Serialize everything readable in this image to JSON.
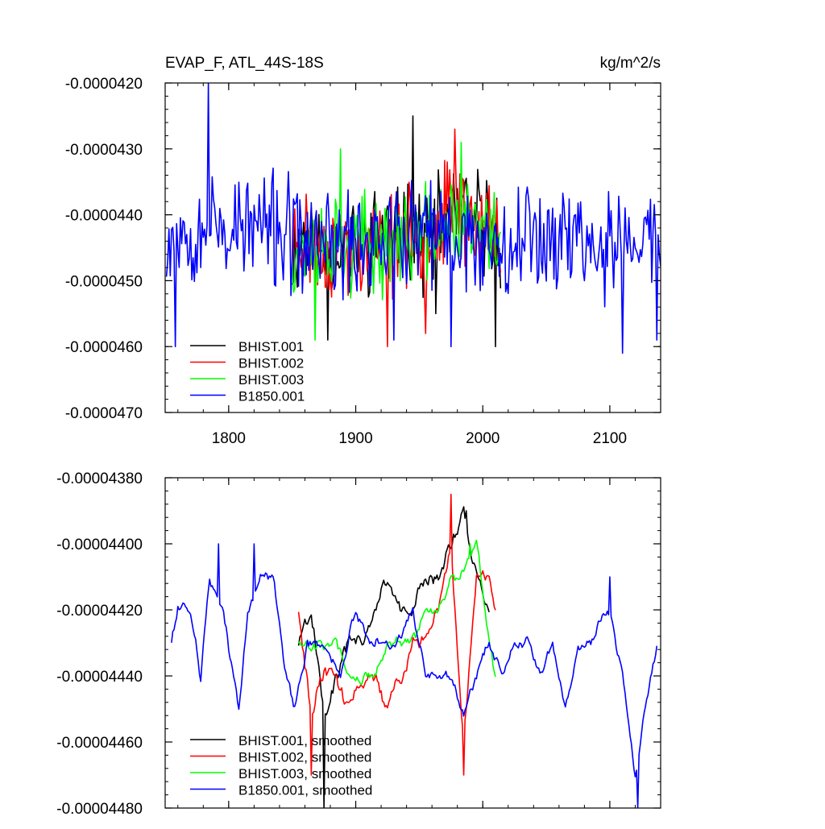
{
  "chart_data": [
    {
      "type": "line",
      "title": "EVAP_F, ATL_44S-18S",
      "units": "kg/m^2/s",
      "xlim": [
        1750,
        2140
      ],
      "ylim": [
        -4.7e-05,
        -4.2e-05
      ],
      "xticks": [
        1800,
        1900,
        2000,
        2100
      ],
      "xtick_labels": [
        "1800",
        "1900",
        "2000",
        "2100"
      ],
      "yticks": [
        -4.2e-05,
        -4.3e-05,
        -4.4e-05,
        -4.5e-05,
        -4.6e-05,
        -4.7e-05
      ],
      "ytick_labels": [
        "-0.0000420",
        "-0.0000430",
        "-0.0000440",
        "-0.0000450",
        "-0.0000460",
        "-0.0000470"
      ],
      "legend_position": "bottom-left",
      "series": [
        {
          "name": "BHIST.001",
          "color": "#000000",
          "x_start": 1850,
          "x_end": 2014,
          "anchors": [
            [
              1850,
              -4.46e-05
            ],
            [
              1860,
              -4.42e-05
            ],
            [
              1870,
              -4.46e-05
            ],
            [
              1880,
              -4.45e-05
            ],
            [
              1890,
              -4.44e-05
            ],
            [
              1900,
              -4.45e-05
            ],
            [
              1910,
              -4.44e-05
            ],
            [
              1920,
              -4.42e-05
            ],
            [
              1930,
              -4.45e-05
            ],
            [
              1940,
              -4.41e-05
            ],
            [
              1950,
              -4.44e-05
            ],
            [
              1960,
              -4.43e-05
            ],
            [
              1970,
              -4.41e-05
            ],
            [
              1980,
              -4.4e-05
            ],
            [
              1990,
              -4.41e-05
            ],
            [
              2000,
              -4.41e-05
            ],
            [
              2014,
              -4.43e-05
            ]
          ],
          "amplitude": 5.8e-07,
          "seed": 11,
          "peaks": [
            [
              1945,
              -4.25e-05
            ],
            [
              2010,
              -4.6e-05
            ],
            [
              1878,
              -4.59e-05
            ],
            [
              1963,
              -4.55e-05
            ]
          ]
        },
        {
          "name": "BHIST.002",
          "color": "#ff0000",
          "x_start": 1850,
          "x_end": 2014,
          "anchors": [
            [
              1850,
              -4.44e-05
            ],
            [
              1860,
              -4.43e-05
            ],
            [
              1870,
              -4.46e-05
            ],
            [
              1880,
              -4.45e-05
            ],
            [
              1890,
              -4.45e-05
            ],
            [
              1900,
              -4.46e-05
            ],
            [
              1910,
              -4.45e-05
            ],
            [
              1920,
              -4.46e-05
            ],
            [
              1930,
              -4.44e-05
            ],
            [
              1940,
              -4.44e-05
            ],
            [
              1950,
              -4.43e-05
            ],
            [
              1960,
              -4.43e-05
            ],
            [
              1970,
              -4.4e-05
            ],
            [
              1980,
              -4.39e-05
            ],
            [
              1990,
              -4.41e-05
            ],
            [
              2000,
              -4.42e-05
            ],
            [
              2014,
              -4.44e-05
            ]
          ],
          "amplitude": 5.8e-07,
          "seed": 23,
          "peaks": [
            [
              1978,
              -4.27e-05
            ],
            [
              1925,
              -4.6e-05
            ],
            [
              1955,
              -4.58e-05
            ]
          ]
        },
        {
          "name": "BHIST.003",
          "color": "#00ff00",
          "x_start": 1850,
          "x_end": 2014,
          "anchors": [
            [
              1850,
              -4.45e-05
            ],
            [
              1860,
              -4.44e-05
            ],
            [
              1870,
              -4.45e-05
            ],
            [
              1880,
              -4.44e-05
            ],
            [
              1890,
              -4.45e-05
            ],
            [
              1900,
              -4.45e-05
            ],
            [
              1910,
              -4.44e-05
            ],
            [
              1920,
              -4.45e-05
            ],
            [
              1930,
              -4.43e-05
            ],
            [
              1940,
              -4.44e-05
            ],
            [
              1950,
              -4.43e-05
            ],
            [
              1960,
              -4.43e-05
            ],
            [
              1970,
              -4.41e-05
            ],
            [
              1980,
              -4.41e-05
            ],
            [
              1990,
              -4.42e-05
            ],
            [
              2000,
              -4.42e-05
            ],
            [
              2014,
              -4.44e-05
            ]
          ],
          "amplitude": 5.5e-07,
          "seed": 37,
          "peaks": [
            [
              1868,
              -4.59e-05
            ],
            [
              1888,
              -4.3e-05
            ],
            [
              1983,
              -4.29e-05
            ]
          ]
        },
        {
          "name": "B1850.001",
          "color": "#0000ff",
          "x_start": 1751,
          "x_end": 2140,
          "anchors": [
            [
              1751,
              -4.43e-05
            ],
            [
              1770,
              -4.42e-05
            ],
            [
              1785,
              -4.41e-05
            ],
            [
              1800,
              -4.42e-05
            ],
            [
              1815,
              -4.42e-05
            ],
            [
              1830,
              -4.42e-05
            ],
            [
              1845,
              -4.43e-05
            ],
            [
              1860,
              -4.45e-05
            ],
            [
              1875,
              -4.44e-05
            ],
            [
              1890,
              -4.45e-05
            ],
            [
              1905,
              -4.44e-05
            ],
            [
              1920,
              -4.43e-05
            ],
            [
              1935,
              -4.44e-05
            ],
            [
              1950,
              -4.43e-05
            ],
            [
              1965,
              -4.44e-05
            ],
            [
              1980,
              -4.43e-05
            ],
            [
              1995,
              -4.44e-05
            ],
            [
              2010,
              -4.44e-05
            ],
            [
              2025,
              -4.43e-05
            ],
            [
              2040,
              -4.43e-05
            ],
            [
              2055,
              -4.43e-05
            ],
            [
              2070,
              -4.43e-05
            ],
            [
              2085,
              -4.44e-05
            ],
            [
              2100,
              -4.45e-05
            ],
            [
              2115,
              -4.45e-05
            ],
            [
              2130,
              -4.43e-05
            ],
            [
              2140,
              -4.44e-05
            ]
          ],
          "amplitude": 6.5e-07,
          "seed": 53,
          "peaks": [
            [
              1784,
              -4.2e-05
            ],
            [
              1758,
              -4.6e-05
            ],
            [
              2110,
              -4.61e-05
            ],
            [
              2137,
              -4.59e-05
            ],
            [
              1930,
              -4.59e-05
            ],
            [
              1975,
              -4.6e-05
            ]
          ]
        }
      ]
    },
    {
      "type": "line",
      "title": "",
      "units": "",
      "xlim": [
        1750,
        2140
      ],
      "ylim": [
        -4.48e-05,
        -4.38e-05
      ],
      "xticks": [
        1800,
        1900,
        2000,
        2100
      ],
      "xtick_labels": [
        "",
        "",
        "",
        ""
      ],
      "yticks": [
        -4.38e-05,
        -4.4e-05,
        -4.42e-05,
        -4.44e-05,
        -4.46e-05,
        -4.48e-05
      ],
      "ytick_labels": [
        "-0.00004380",
        "-0.00004400",
        "-0.00004420",
        "-0.00004440",
        "-0.00004460",
        "-0.00004480"
      ],
      "legend_position": "bottom-left",
      "series": [
        {
          "name": "BHIST.001, smoothed",
          "color": "#000000",
          "x_start": 1855,
          "x_end": 2005,
          "anchors": [
            [
              1855,
              -4.43e-05
            ],
            [
              1865,
              -4.42e-05
            ],
            [
              1875,
              -4.45e-05
            ],
            [
              1885,
              -4.44e-05
            ],
            [
              1895,
              -4.43e-05
            ],
            [
              1905,
              -4.43e-05
            ],
            [
              1915,
              -4.42e-05
            ],
            [
              1925,
              -4.41e-05
            ],
            [
              1935,
              -4.42e-05
            ],
            [
              1945,
              -4.42e-05
            ],
            [
              1955,
              -4.41e-05
            ],
            [
              1965,
              -4.41e-05
            ],
            [
              1975,
              -4.4e-05
            ],
            [
              1985,
              -4.39e-05
            ],
            [
              1995,
              -4.41e-05
            ],
            [
              2005,
              -4.42e-05
            ]
          ],
          "amplitude": 4.5e-08,
          "seed": 101,
          "peaks": [
            [
              1875,
              -4.48e-05
            ],
            [
              1987,
              -4.39e-05
            ]
          ]
        },
        {
          "name": "BHIST.002, smoothed",
          "color": "#ff0000",
          "x_start": 1855,
          "x_end": 2010,
          "anchors": [
            [
              1855,
              -4.42e-05
            ],
            [
              1865,
              -4.45e-05
            ],
            [
              1875,
              -4.44e-05
            ],
            [
              1885,
              -4.44e-05
            ],
            [
              1895,
              -4.45e-05
            ],
            [
              1905,
              -4.44e-05
            ],
            [
              1915,
              -4.44e-05
            ],
            [
              1925,
              -4.45e-05
            ],
            [
              1935,
              -4.44e-05
            ],
            [
              1945,
              -4.43e-05
            ],
            [
              1955,
              -4.43e-05
            ],
            [
              1965,
              -4.42e-05
            ],
            [
              1975,
              -4.4e-05
            ],
            [
              1985,
              -4.46e-05
            ],
            [
              1995,
              -4.41e-05
            ],
            [
              2005,
              -4.41e-05
            ],
            [
              2010,
              -4.42e-05
            ]
          ],
          "amplitude": 4.5e-08,
          "seed": 113,
          "peaks": [
            [
              1865,
              -4.47e-05
            ],
            [
              1975,
              -4.385e-05
            ],
            [
              1985,
              -4.47e-05
            ]
          ]
        },
        {
          "name": "BHIST.003, smoothed",
          "color": "#00ff00",
          "x_start": 1855,
          "x_end": 2010,
          "anchors": [
            [
              1855,
              -4.43e-05
            ],
            [
              1865,
              -4.43e-05
            ],
            [
              1875,
              -4.43e-05
            ],
            [
              1885,
              -4.43e-05
            ],
            [
              1895,
              -4.44e-05
            ],
            [
              1905,
              -4.44e-05
            ],
            [
              1915,
              -4.44e-05
            ],
            [
              1925,
              -4.43e-05
            ],
            [
              1935,
              -4.43e-05
            ],
            [
              1945,
              -4.43e-05
            ],
            [
              1955,
              -4.42e-05
            ],
            [
              1965,
              -4.42e-05
            ],
            [
              1975,
              -4.41e-05
            ],
            [
              1985,
              -4.41e-05
            ],
            [
              1995,
              -4.4e-05
            ],
            [
              2005,
              -4.43e-05
            ],
            [
              2010,
              -4.44e-05
            ]
          ],
          "amplitude": 3.5e-08,
          "seed": 127,
          "peaks": [
            [
              1990,
              -4.4e-05
            ]
          ]
        },
        {
          "name": "B1850.001, smoothed",
          "color": "#0000ff",
          "x_start": 1755,
          "x_end": 2137,
          "anchors": [
            [
              1755,
              -4.43e-05
            ],
            [
              1760,
              -4.42e-05
            ],
            [
              1770,
              -4.42e-05
            ],
            [
              1778,
              -4.44e-05
            ],
            [
              1785,
              -4.41e-05
            ],
            [
              1795,
              -4.42e-05
            ],
            [
              1808,
              -4.45e-05
            ],
            [
              1815,
              -4.42e-05
            ],
            [
              1825,
              -4.41e-05
            ],
            [
              1835,
              -4.41e-05
            ],
            [
              1845,
              -4.44e-05
            ],
            [
              1852,
              -4.45e-05
            ],
            [
              1862,
              -4.43e-05
            ],
            [
              1875,
              -4.43e-05
            ],
            [
              1888,
              -4.44e-05
            ],
            [
              1900,
              -4.42e-05
            ],
            [
              1912,
              -4.43e-05
            ],
            [
              1925,
              -4.43e-05
            ],
            [
              1935,
              -4.43e-05
            ],
            [
              1945,
              -4.42e-05
            ],
            [
              1955,
              -4.44e-05
            ],
            [
              1965,
              -4.44e-05
            ],
            [
              1975,
              -4.44e-05
            ],
            [
              1985,
              -4.45e-05
            ],
            [
              1995,
              -4.44e-05
            ],
            [
              2005,
              -4.43e-05
            ],
            [
              2015,
              -4.44e-05
            ],
            [
              2025,
              -4.43e-05
            ],
            [
              2035,
              -4.43e-05
            ],
            [
              2045,
              -4.44e-05
            ],
            [
              2055,
              -4.43e-05
            ],
            [
              2065,
              -4.45e-05
            ],
            [
              2075,
              -4.43e-05
            ],
            [
              2085,
              -4.43e-05
            ],
            [
              2095,
              -4.42e-05
            ],
            [
              2100,
              -4.42e-05
            ],
            [
              2110,
              -4.44e-05
            ],
            [
              2120,
              -4.47e-05
            ],
            [
              2128,
              -4.45e-05
            ],
            [
              2137,
              -4.43e-05
            ]
          ],
          "amplitude": 3e-08,
          "seed": 139,
          "peaks": [
            [
              1792,
              -4.4e-05
            ],
            [
              1820,
              -4.4e-05
            ],
            [
              2100,
              -4.41e-05
            ],
            [
              2122,
              -4.48e-05
            ]
          ]
        }
      ]
    }
  ]
}
